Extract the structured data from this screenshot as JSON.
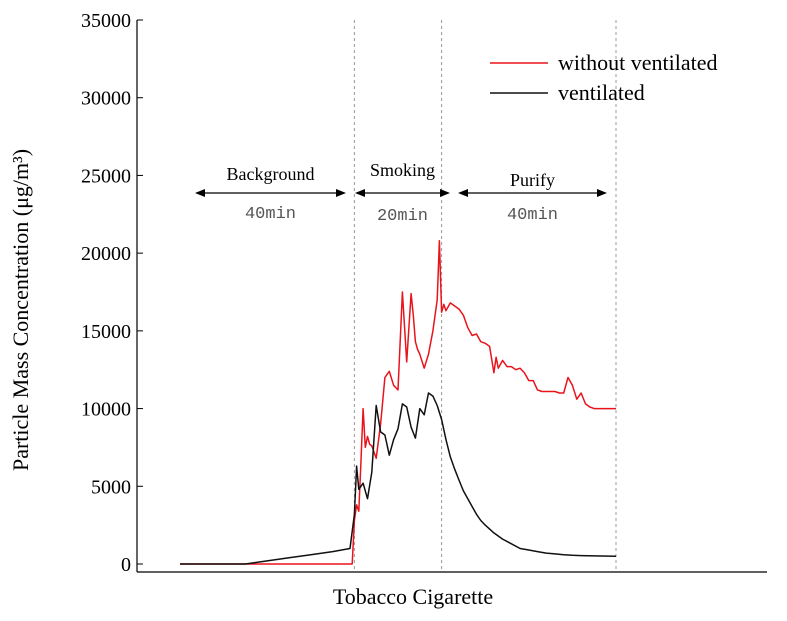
{
  "chart_data": {
    "type": "line",
    "xlabel": "Tobacco Cigarette",
    "ylabel": "Particle Mass Concentration (μg/m³)",
    "ylim": [
      0,
      35000
    ],
    "xlim": [
      0,
      120
    ],
    "yticks": [
      "0",
      "5000",
      "10000",
      "15000",
      "20000",
      "25000",
      "30000",
      "35000"
    ],
    "legend_position": "top-right",
    "phases": [
      {
        "label": "Background",
        "duration": "40min",
        "start": 0,
        "end": 40
      },
      {
        "label": "Smoking",
        "duration": "20min",
        "start": 40,
        "end": 60
      },
      {
        "label": "Purify",
        "duration": "40min",
        "start": 60,
        "end": 100
      }
    ],
    "series": [
      {
        "name": "without ventilated",
        "color": "#e8141b",
        "x": [
          0,
          39.5,
          40,
          40.5,
          41,
          41.5,
          42,
          42.5,
          43,
          43.5,
          44,
          45,
          46,
          47,
          48,
          49,
          50,
          51,
          52,
          53,
          53.5,
          54,
          54.5,
          55,
          56,
          57,
          58,
          59,
          59.5,
          60,
          60.5,
          61,
          62,
          63,
          64,
          65,
          66,
          67,
          68,
          69,
          70,
          71,
          72,
          72.5,
          73,
          74,
          75,
          76,
          77,
          78,
          79,
          80,
          81,
          82,
          83,
          84,
          85,
          86,
          87,
          88,
          89,
          90,
          91,
          92,
          93,
          94,
          95,
          96,
          97,
          98,
          99,
          100
        ],
        "y": [
          0,
          0,
          2800,
          3800,
          3400,
          6500,
          10000,
          7500,
          8200,
          7700,
          7600,
          6800,
          9000,
          12000,
          12400,
          11500,
          11200,
          17500,
          13000,
          17400,
          16000,
          14300,
          13800,
          13500,
          12600,
          13500,
          15000,
          17000,
          20800,
          16200,
          16700,
          16300,
          16800,
          16600,
          16400,
          16000,
          15200,
          14700,
          14800,
          14300,
          14200,
          14000,
          12300,
          13300,
          12600,
          13100,
          12700,
          12700,
          12500,
          12600,
          12300,
          11800,
          11800,
          11200,
          11100,
          11100,
          11100,
          11100,
          11000,
          11000,
          12000,
          11500,
          10600,
          11000,
          10300,
          10100,
          10000,
          10000,
          10000,
          10000,
          10000,
          10000
        ],
        "trim_x": 100
      },
      {
        "name": "ventilated",
        "color": "#111111",
        "x": [
          0,
          15,
          20,
          25,
          30,
          35,
          39,
          40,
          40.5,
          41,
          42,
          43,
          44,
          45,
          46,
          47,
          48,
          49,
          50,
          51,
          52,
          53,
          54,
          55,
          56,
          57,
          58,
          59,
          60,
          61,
          62,
          63,
          64,
          65,
          66,
          67,
          68,
          69,
          70,
          72,
          74,
          76,
          78,
          80,
          82,
          84,
          86,
          88,
          90,
          92,
          95,
          100
        ],
        "y": [
          0,
          0,
          200,
          400,
          600,
          800,
          1000,
          3200,
          6300,
          4800,
          5200,
          4200,
          5900,
          10200,
          8500,
          8300,
          7000,
          8000,
          8700,
          10300,
          10100,
          8800,
          8100,
          10000,
          9600,
          11000,
          10800,
          10200,
          9300,
          8000,
          6900,
          6100,
          5400,
          4700,
          4200,
          3700,
          3200,
          2800,
          2500,
          2000,
          1600,
          1300,
          1000,
          900,
          800,
          700,
          650,
          600,
          560,
          540,
          520,
          500
        ]
      }
    ]
  }
}
